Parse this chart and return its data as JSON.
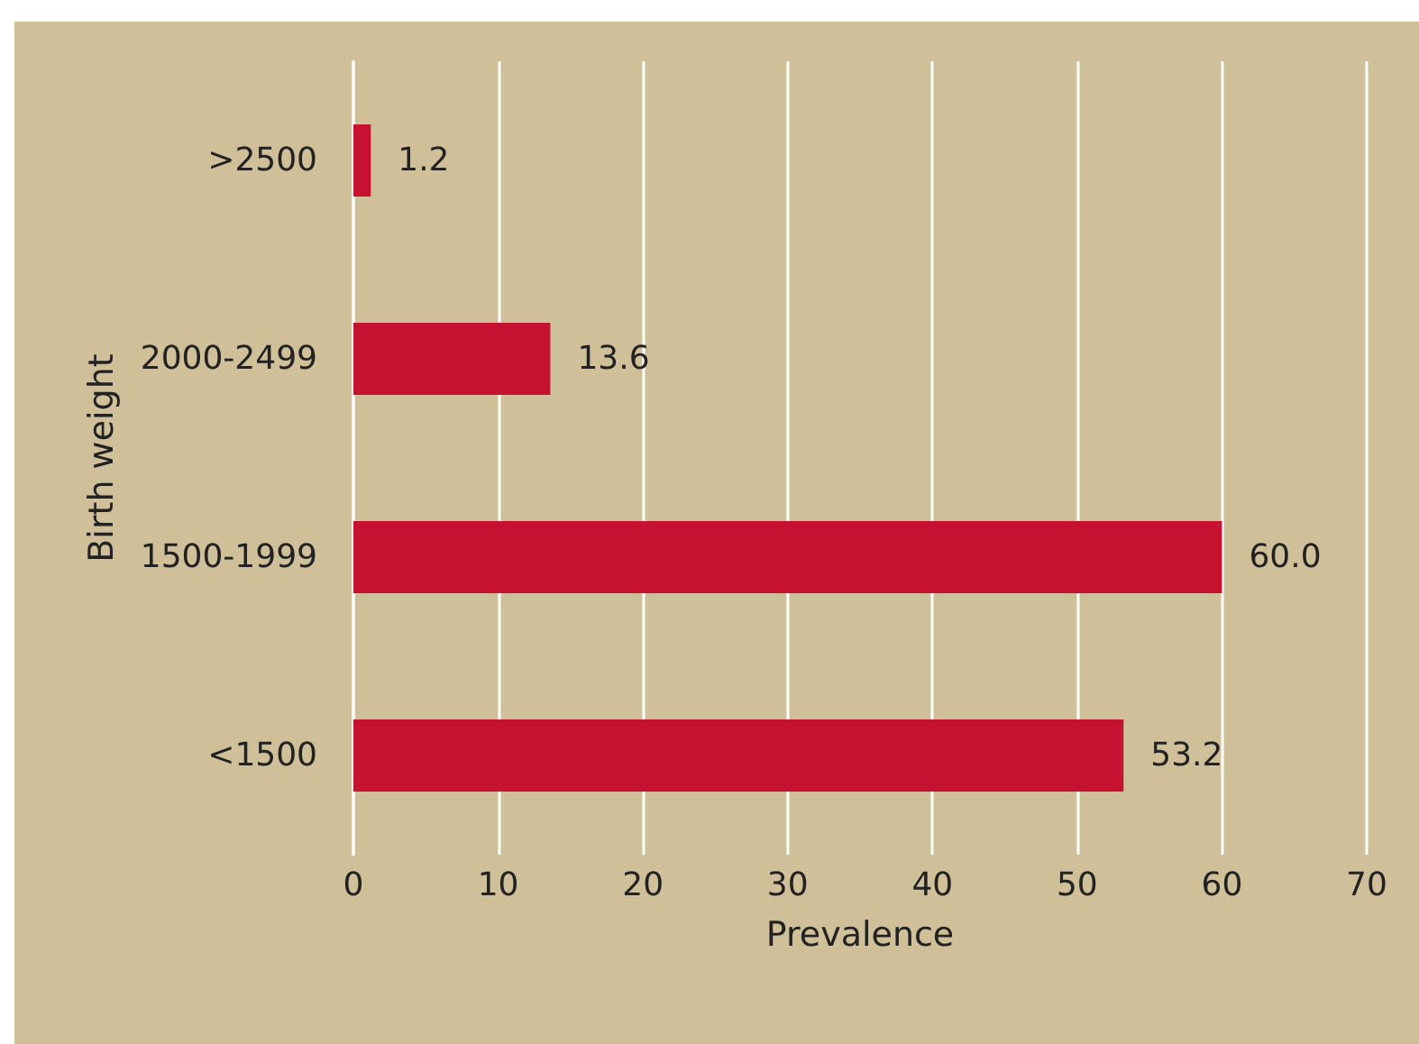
{
  "chart_data": {
    "type": "bar",
    "orientation": "horizontal",
    "categories": [
      ">2500",
      "2000-2499",
      "1500-1999",
      "<1500"
    ],
    "values": [
      1.2,
      13.6,
      60.0,
      53.2
    ],
    "value_labels": [
      "1.2",
      "13.6",
      "60.0",
      "53.2"
    ],
    "color": "#c41230",
    "xlim": [
      0,
      70
    ],
    "xticks": [
      0,
      10,
      20,
      30,
      40,
      50,
      60,
      70
    ],
    "xlabel": "Prevalence",
    "ylabel": "Birth weight",
    "grid": "x"
  }
}
